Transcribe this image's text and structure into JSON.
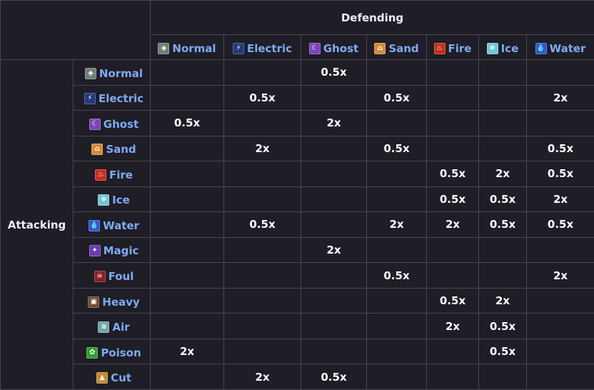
{
  "header": {
    "defending_label": "Defending",
    "attacking_label": "Attacking"
  },
  "colors": {
    "half": "#830b0b",
    "double": "#0f850f",
    "link": "#7eaaf4",
    "background": "#1f1d26",
    "border": "#4a4756"
  },
  "types": {
    "normal": {
      "label": "Normal",
      "icon": "normal-icon",
      "color": "#6f7f76",
      "glyph": "◈"
    },
    "electric": {
      "label": "Electric",
      "icon": "electric-icon",
      "color": "#233a7a",
      "glyph": "⚡"
    },
    "ghost": {
      "label": "Ghost",
      "icon": "ghost-icon",
      "color": "#7b46b8",
      "glyph": "☾"
    },
    "sand": {
      "label": "Sand",
      "icon": "sand-icon",
      "color": "#d58a3b",
      "glyph": "⌂"
    },
    "fire": {
      "label": "Fire",
      "icon": "fire-icon",
      "color": "#c3301c",
      "glyph": "♨"
    },
    "ice": {
      "label": "Ice",
      "icon": "ice-icon",
      "color": "#6fc7d3",
      "glyph": "❄"
    },
    "water": {
      "label": "Water",
      "icon": "water-icon",
      "color": "#2f57c9",
      "glyph": "💧"
    },
    "magic": {
      "label": "Magic",
      "icon": "magic-icon",
      "color": "#6a3ab0",
      "glyph": "✦"
    },
    "foul": {
      "label": "Foul",
      "icon": "foul-icon",
      "color": "#8a1d28",
      "glyph": "☠"
    },
    "heavy": {
      "label": "Heavy",
      "icon": "heavy-icon",
      "color": "#6c4a2a",
      "glyph": "▣"
    },
    "air": {
      "label": "Air",
      "icon": "air-icon",
      "color": "#6fa8a6",
      "glyph": "≋"
    },
    "poison": {
      "label": "Poison",
      "icon": "poison-icon",
      "color": "#2f9e2f",
      "glyph": "✿"
    },
    "cut": {
      "label": "Cut",
      "icon": "cut-icon",
      "color": "#c98a23",
      "glyph": "▲"
    }
  },
  "defending_types": [
    "normal",
    "electric",
    "ghost",
    "sand",
    "fire",
    "ice",
    "water"
  ],
  "rows": [
    {
      "type": "normal",
      "cells": [
        "",
        "",
        "0.5x",
        "",
        "",
        "",
        ""
      ]
    },
    {
      "type": "electric",
      "cells": [
        "",
        "0.5x",
        "",
        "0.5x",
        "",
        "",
        "2x"
      ]
    },
    {
      "type": "ghost",
      "cells": [
        "0.5x",
        "",
        "2x",
        "",
        "",
        "",
        ""
      ]
    },
    {
      "type": "sand",
      "cells": [
        "",
        "2x",
        "",
        "0.5x",
        "",
        "",
        "0.5x"
      ]
    },
    {
      "type": "fire",
      "cells": [
        "",
        "",
        "",
        "",
        "0.5x",
        "2x",
        "0.5x"
      ]
    },
    {
      "type": "ice",
      "cells": [
        "",
        "",
        "",
        "",
        "0.5x",
        "0.5x",
        "2x"
      ]
    },
    {
      "type": "water",
      "cells": [
        "",
        "0.5x",
        "",
        "2x",
        "2x",
        "0.5x",
        "0.5x"
      ]
    },
    {
      "type": "magic",
      "cells": [
        "",
        "",
        "2x",
        "",
        "",
        "",
        ""
      ]
    },
    {
      "type": "foul",
      "cells": [
        "",
        "",
        "",
        "0.5x",
        "",
        "",
        "2x"
      ]
    },
    {
      "type": "heavy",
      "cells": [
        "",
        "",
        "",
        "",
        "0.5x",
        "2x",
        ""
      ]
    },
    {
      "type": "air",
      "cells": [
        "",
        "",
        "",
        "",
        "2x",
        "0.5x",
        ""
      ]
    },
    {
      "type": "poison",
      "cells": [
        "2x",
        "",
        "",
        "",
        "",
        "0.5x",
        ""
      ]
    },
    {
      "type": "cut",
      "cells": [
        "",
        "2x",
        "0.5x",
        "",
        "",
        "",
        ""
      ]
    }
  ]
}
